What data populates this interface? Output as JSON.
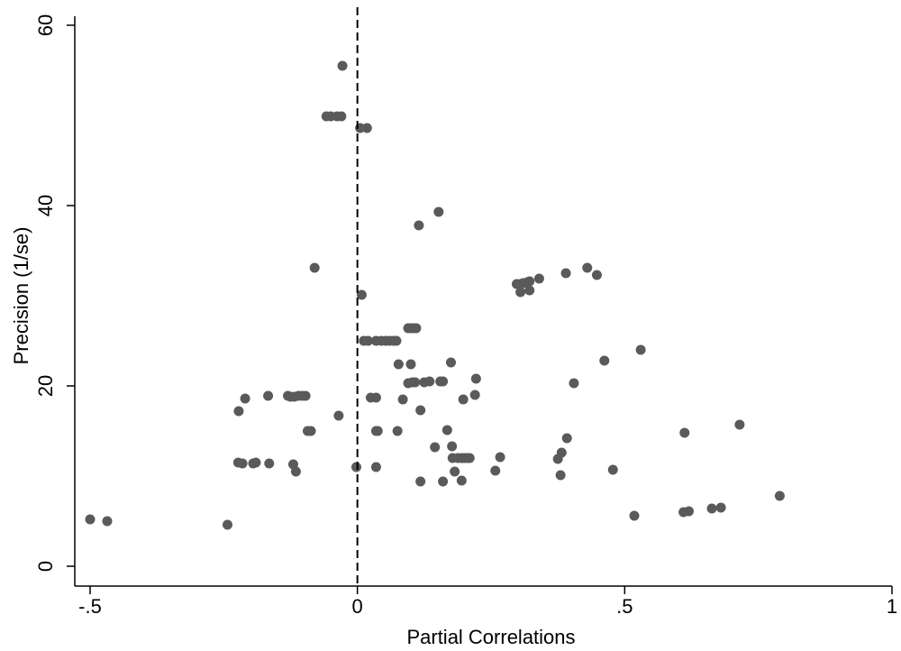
{
  "chart_data": {
    "type": "scatter",
    "xlabel": "Partial Correlations",
    "ylabel": "Precision (1/se)",
    "xlim": [
      -0.5,
      1
    ],
    "ylim": [
      0,
      60
    ],
    "xticks": [
      {
        "value": -0.5,
        "label": "-.5"
      },
      {
        "value": 0,
        "label": "0"
      },
      {
        "value": 0.5,
        "label": ".5"
      },
      {
        "value": 1,
        "label": "1"
      }
    ],
    "yticks": [
      {
        "value": 0,
        "label": "0"
      },
      {
        "value": 20,
        "label": "20"
      },
      {
        "value": 40,
        "label": "40"
      },
      {
        "value": 60,
        "label": "60"
      }
    ],
    "reference_line": {
      "orientation": "vertical",
      "x": 0,
      "style": "dashed"
    },
    "grid": false,
    "marker_color": "#5a5a5a",
    "series": [
      {
        "points": [
          {
            "x": -0.5,
            "y": 5.2
          },
          {
            "x": -0.468,
            "y": 5.0
          },
          {
            "x": -0.243,
            "y": 4.6
          },
          {
            "x": -0.223,
            "y": 11.5
          },
          {
            "x": -0.215,
            "y": 11.4
          },
          {
            "x": -0.195,
            "y": 11.4
          },
          {
            "x": -0.19,
            "y": 11.5
          },
          {
            "x": -0.165,
            "y": 11.4
          },
          {
            "x": -0.12,
            "y": 11.3
          },
          {
            "x": -0.115,
            "y": 10.5
          },
          {
            "x": -0.222,
            "y": 17.2
          },
          {
            "x": -0.21,
            "y": 18.6
          },
          {
            "x": -0.167,
            "y": 18.9
          },
          {
            "x": -0.13,
            "y": 18.9
          },
          {
            "x": -0.125,
            "y": 18.8
          },
          {
            "x": -0.118,
            "y": 18.8
          },
          {
            "x": -0.11,
            "y": 18.9
          },
          {
            "x": -0.103,
            "y": 18.9
          },
          {
            "x": -0.097,
            "y": 18.9
          },
          {
            "x": -0.093,
            "y": 15.0
          },
          {
            "x": -0.087,
            "y": 15.0
          },
          {
            "x": -0.08,
            "y": 33.1
          },
          {
            "x": -0.035,
            "y": 16.7
          },
          {
            "x": -0.058,
            "y": 49.9
          },
          {
            "x": -0.05,
            "y": 49.9
          },
          {
            "x": -0.038,
            "y": 49.9
          },
          {
            "x": -0.03,
            "y": 49.9
          },
          {
            "x": -0.028,
            "y": 55.5
          },
          {
            "x": -0.002,
            "y": 11.0
          },
          {
            "x": 0.005,
            "y": 48.6
          },
          {
            "x": 0.018,
            "y": 48.6
          },
          {
            "x": 0.008,
            "y": 30.1
          },
          {
            "x": 0.012,
            "y": 25.0
          },
          {
            "x": 0.02,
            "y": 25.0
          },
          {
            "x": 0.035,
            "y": 25.0
          },
          {
            "x": 0.045,
            "y": 25.0
          },
          {
            "x": 0.053,
            "y": 25.0
          },
          {
            "x": 0.06,
            "y": 25.0
          },
          {
            "x": 0.068,
            "y": 25.0
          },
          {
            "x": 0.073,
            "y": 25.0
          },
          {
            "x": 0.025,
            "y": 18.7
          },
          {
            "x": 0.035,
            "y": 18.7
          },
          {
            "x": 0.035,
            "y": 15.0
          },
          {
            "x": 0.038,
            "y": 15.0
          },
          {
            "x": 0.035,
            "y": 11.0
          },
          {
            "x": 0.075,
            "y": 15.0
          },
          {
            "x": 0.077,
            "y": 22.4
          },
          {
            "x": 0.085,
            "y": 18.5
          },
          {
            "x": 0.095,
            "y": 26.4
          },
          {
            "x": 0.1,
            "y": 26.4
          },
          {
            "x": 0.105,
            "y": 26.4
          },
          {
            "x": 0.11,
            "y": 26.4
          },
          {
            "x": 0.1,
            "y": 22.4
          },
          {
            "x": 0.095,
            "y": 20.3
          },
          {
            "x": 0.103,
            "y": 20.4
          },
          {
            "x": 0.108,
            "y": 20.4
          },
          {
            "x": 0.125,
            "y": 20.4
          },
          {
            "x": 0.135,
            "y": 20.5
          },
          {
            "x": 0.155,
            "y": 20.5
          },
          {
            "x": 0.16,
            "y": 20.5
          },
          {
            "x": 0.115,
            "y": 37.8
          },
          {
            "x": 0.152,
            "y": 39.3
          },
          {
            "x": 0.118,
            "y": 17.3
          },
          {
            "x": 0.118,
            "y": 9.4
          },
          {
            "x": 0.145,
            "y": 13.2
          },
          {
            "x": 0.16,
            "y": 9.4
          },
          {
            "x": 0.168,
            "y": 15.1
          },
          {
            "x": 0.175,
            "y": 22.6
          },
          {
            "x": 0.177,
            "y": 13.3
          },
          {
            "x": 0.178,
            "y": 12.0
          },
          {
            "x": 0.182,
            "y": 10.5
          },
          {
            "x": 0.188,
            "y": 12.0
          },
          {
            "x": 0.195,
            "y": 12.0
          },
          {
            "x": 0.2,
            "y": 12.0
          },
          {
            "x": 0.205,
            "y": 12.0
          },
          {
            "x": 0.21,
            "y": 12.0
          },
          {
            "x": 0.195,
            "y": 9.5
          },
          {
            "x": 0.198,
            "y": 18.5
          },
          {
            "x": 0.22,
            "y": 19.0
          },
          {
            "x": 0.222,
            "y": 20.8
          },
          {
            "x": 0.258,
            "y": 10.6
          },
          {
            "x": 0.267,
            "y": 12.1
          },
          {
            "x": 0.298,
            "y": 31.3
          },
          {
            "x": 0.305,
            "y": 31.3
          },
          {
            "x": 0.31,
            "y": 31.4
          },
          {
            "x": 0.318,
            "y": 31.5
          },
          {
            "x": 0.322,
            "y": 31.6
          },
          {
            "x": 0.305,
            "y": 30.4
          },
          {
            "x": 0.322,
            "y": 30.6
          },
          {
            "x": 0.34,
            "y": 31.9
          },
          {
            "x": 0.375,
            "y": 11.9
          },
          {
            "x": 0.38,
            "y": 10.1
          },
          {
            "x": 0.382,
            "y": 12.6
          },
          {
            "x": 0.39,
            "y": 32.5
          },
          {
            "x": 0.392,
            "y": 14.2
          },
          {
            "x": 0.405,
            "y": 20.3
          },
          {
            "x": 0.43,
            "y": 33.1
          },
          {
            "x": 0.448,
            "y": 32.3
          },
          {
            "x": 0.462,
            "y": 22.8
          },
          {
            "x": 0.478,
            "y": 10.7
          },
          {
            "x": 0.518,
            "y": 5.6
          },
          {
            "x": 0.53,
            "y": 24.0
          },
          {
            "x": 0.61,
            "y": 6.0
          },
          {
            "x": 0.612,
            "y": 14.8
          },
          {
            "x": 0.62,
            "y": 6.1
          },
          {
            "x": 0.663,
            "y": 6.4
          },
          {
            "x": 0.68,
            "y": 6.5
          },
          {
            "x": 0.715,
            "y": 15.7
          },
          {
            "x": 0.79,
            "y": 7.8
          }
        ]
      }
    ]
  }
}
